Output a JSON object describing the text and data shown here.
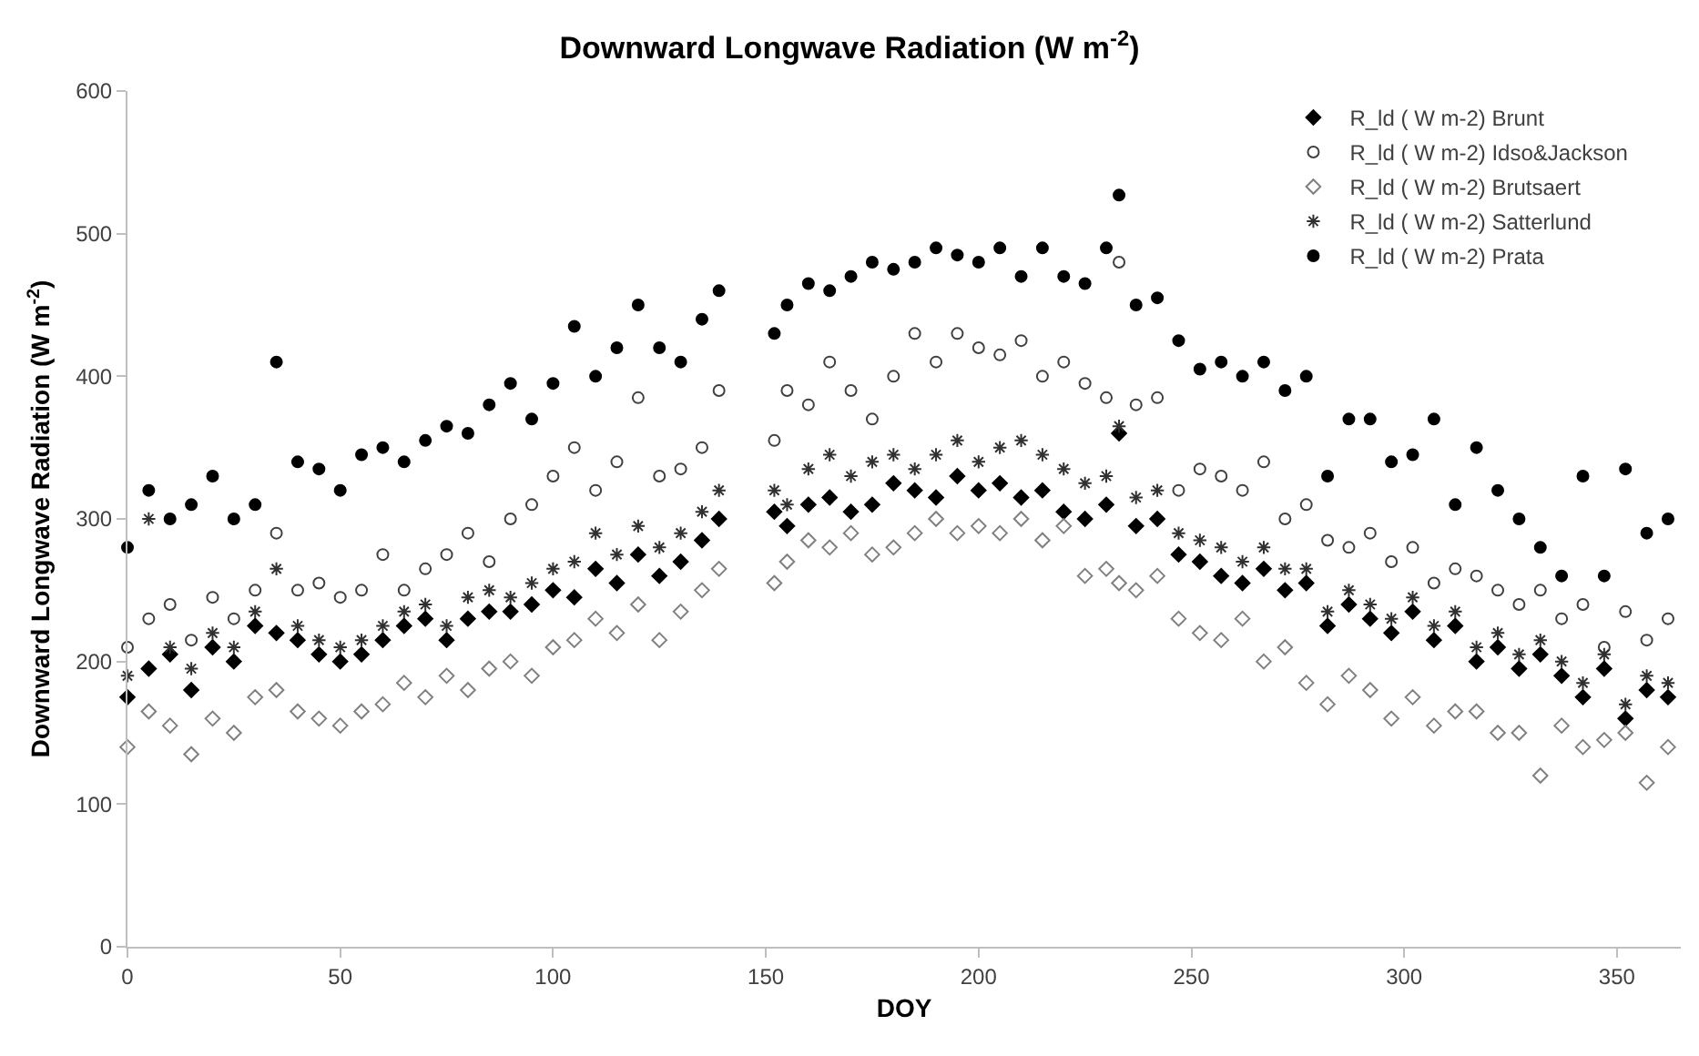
{
  "chart_data": {
    "type": "scatter",
    "title": "Downward Longwave Radiation (W m$^{-2}$)",
    "xlabel": "DOY",
    "ylabel": "Downward Longwave Radiation (W m$^{-2}$)",
    "xlim": [
      0,
      365
    ],
    "xticks": [
      0,
      50,
      100,
      150,
      200,
      250,
      300,
      350
    ],
    "ylim": [
      0,
      600
    ],
    "yticks": [
      0,
      100,
      200,
      300,
      400,
      500,
      600
    ],
    "grid": false,
    "legend": "top right",
    "x": [
      0,
      5,
      10,
      15,
      20,
      25,
      30,
      35,
      40,
      45,
      50,
      55,
      60,
      65,
      70,
      75,
      80,
      85,
      90,
      95,
      100,
      105,
      110,
      115,
      120,
      125,
      130,
      135,
      139,
      152,
      155,
      160,
      165,
      170,
      175,
      180,
      185,
      190,
      195,
      200,
      205,
      210,
      215,
      220,
      225,
      230,
      233,
      237,
      242,
      247,
      252,
      257,
      262,
      267,
      272,
      277,
      282,
      287,
      292,
      297,
      302,
      307,
      312,
      317,
      322,
      327,
      332,
      337,
      342,
      347,
      352,
      357,
      362
    ],
    "series": [
      {
        "name": "R_ld ( W m-2) Brunt",
        "color": "#000000",
        "marker": "diamond",
        "values": [
          175,
          195,
          205,
          180,
          210,
          200,
          225,
          220,
          215,
          205,
          200,
          205,
          215,
          225,
          230,
          215,
          230,
          235,
          235,
          240,
          250,
          245,
          265,
          255,
          275,
          260,
          270,
          285,
          300,
          305,
          295,
          310,
          315,
          305,
          310,
          325,
          320,
          315,
          330,
          320,
          325,
          315,
          320,
          305,
          300,
          310,
          360,
          295,
          300,
          275,
          270,
          260,
          255,
          265,
          250,
          255,
          225,
          240,
          230,
          220,
          235,
          215,
          225,
          200,
          210,
          195,
          205,
          190,
          175,
          195,
          160,
          180,
          175
        ]
      },
      {
        "name": "R_ld ( W m-2) Idso&Jackson",
        "color": "#404040",
        "marker": "circle-open",
        "values": [
          210,
          230,
          240,
          215,
          245,
          230,
          250,
          290,
          250,
          255,
          245,
          250,
          275,
          250,
          265,
          275,
          290,
          270,
          300,
          310,
          330,
          350,
          320,
          340,
          385,
          330,
          335,
          350,
          390,
          355,
          390,
          380,
          410,
          390,
          370,
          400,
          430,
          410,
          430,
          420,
          415,
          425,
          400,
          410,
          395,
          385,
          480,
          380,
          385,
          320,
          335,
          330,
          320,
          340,
          300,
          310,
          285,
          280,
          290,
          270,
          280,
          255,
          265,
          260,
          250,
          240,
          250,
          230,
          240,
          210,
          235,
          215,
          230
        ]
      },
      {
        "name": "R_ld ( W m-2) Brutsaert",
        "color": "#808080",
        "marker": "diamond-open",
        "values": [
          140,
          165,
          155,
          135,
          160,
          150,
          175,
          180,
          165,
          160,
          155,
          165,
          170,
          185,
          175,
          190,
          180,
          195,
          200,
          190,
          210,
          215,
          230,
          220,
          240,
          215,
          235,
          250,
          265,
          255,
          270,
          285,
          280,
          290,
          275,
          280,
          290,
          300,
          290,
          295,
          290,
          300,
          285,
          295,
          260,
          265,
          255,
          250,
          260,
          230,
          220,
          215,
          230,
          200,
          210,
          185,
          170,
          190,
          180,
          160,
          175,
          155,
          165,
          165,
          150,
          150,
          120,
          155,
          140,
          145,
          150,
          115,
          140
        ]
      },
      {
        "name": "R_ld ( W m-2) Satterlund",
        "color": "#303030",
        "marker": "cross",
        "values": [
          190,
          300,
          210,
          195,
          220,
          210,
          235,
          265,
          225,
          215,
          210,
          215,
          225,
          235,
          240,
          225,
          245,
          250,
          245,
          255,
          265,
          270,
          290,
          275,
          295,
          280,
          290,
          305,
          320,
          320,
          310,
          335,
          345,
          330,
          340,
          345,
          335,
          345,
          355,
          340,
          350,
          355,
          345,
          335,
          325,
          330,
          365,
          315,
          320,
          290,
          285,
          280,
          270,
          280,
          265,
          265,
          235,
          250,
          240,
          230,
          245,
          225,
          235,
          210,
          220,
          205,
          215,
          200,
          185,
          205,
          170,
          190,
          185
        ]
      },
      {
        "name": "R_ld ( W m-2) Prata",
        "color": "#000000",
        "marker": "circle",
        "values": [
          280,
          320,
          300,
          310,
          330,
          300,
          310,
          410,
          340,
          335,
          320,
          345,
          350,
          340,
          355,
          365,
          360,
          380,
          395,
          370,
          395,
          435,
          400,
          420,
          450,
          420,
          410,
          440,
          460,
          430,
          450,
          465,
          460,
          470,
          480,
          475,
          480,
          490,
          485,
          480,
          490,
          470,
          490,
          470,
          465,
          490,
          527,
          450,
          455,
          425,
          405,
          410,
          400,
          410,
          390,
          400,
          330,
          370,
          370,
          340,
          345,
          370,
          310,
          350,
          320,
          300,
          280,
          260,
          330,
          260,
          335,
          290,
          300
        ]
      }
    ]
  }
}
